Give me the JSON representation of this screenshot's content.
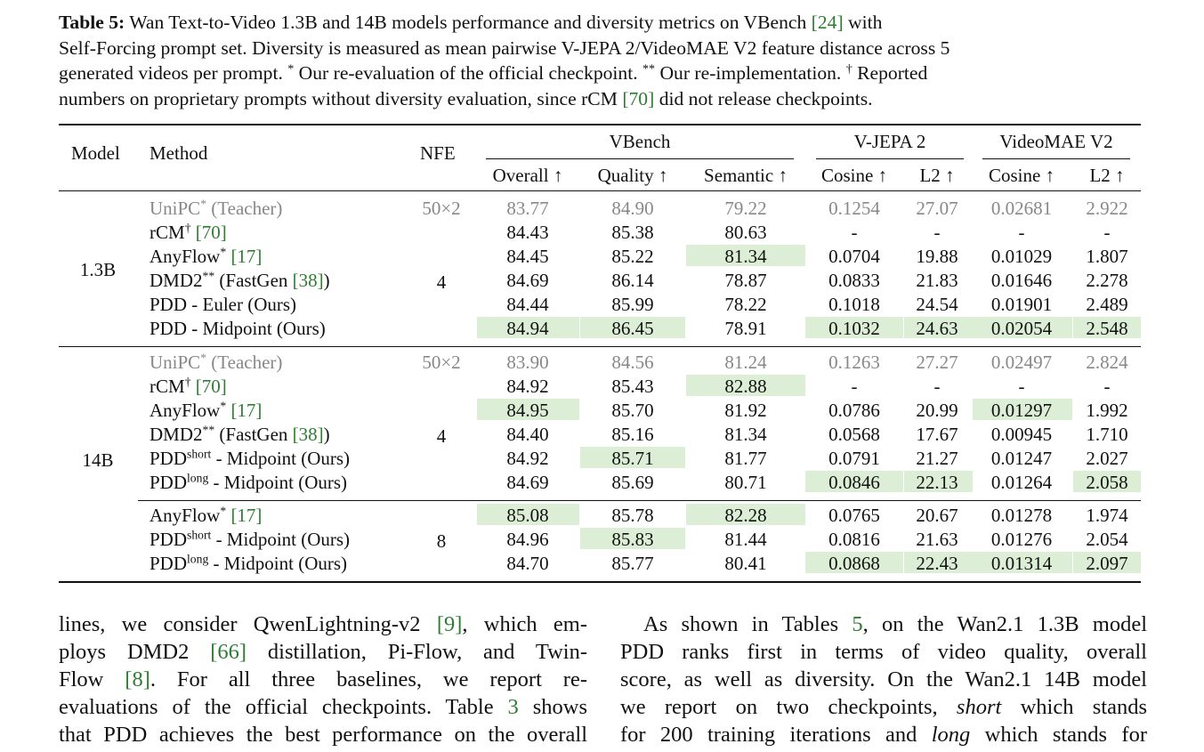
{
  "caption": {
    "label": "Table 5:",
    "line1a": " Wan Text-to-Video 1.3B and 14B models performance and diversity metrics on VBench ",
    "cite1": "[24]",
    "line1b": " with",
    "line2": "Self-Forcing prompt set. Diversity is measured as mean pairwise V-JEPA 2/VideoMAE V2 feature distance across 5",
    "line3a": "generated videos per prompt. ",
    "sup1": "*",
    "line3b": " Our re-evaluation of the official checkpoint. ",
    "sup2": "**",
    "line3c": " Our re-implementation. ",
    "sup3": "†",
    "line3d": " Reported",
    "line4a": "numbers on proprietary prompts without diversity evaluation, since rCM ",
    "cite2": "[70]",
    "line4b": " did not release checkpoints."
  },
  "header": {
    "model": "Model",
    "method": "Method",
    "nfe": "NFE",
    "vbench": "VBench",
    "vjepa": "V-JEPA 2",
    "videomae": "VideoMAE V2",
    "overall": "Overall ↑",
    "quality": "Quality ↑",
    "semantic": "Semantic ↑",
    "cosine1": "Cosine ↑",
    "l2_1": "L2 ↑",
    "cosine2": "Cosine ↑",
    "l2_2": "L2 ↑"
  },
  "groups": {
    "g1_model": "1.3B",
    "g1_nfe": "4",
    "g2_model": "14B",
    "g2_nfe": "4",
    "g3_nfe": "8"
  },
  "rows": [
    {
      "m1": "UniPC",
      "s1": "*",
      "m2": " (Teacher)",
      "nfe": "50×2",
      "v": [
        "83.77",
        "84.90",
        "79.22",
        "0.1254",
        "27.07",
        "0.02681",
        "2.922"
      ]
    },
    {
      "m1": "rCM",
      "s1": "†",
      "m2": " ",
      "cite": "[70]",
      "v": [
        "84.43",
        "85.38",
        "80.63",
        "-",
        "-",
        "-",
        "-"
      ]
    },
    {
      "m1": "AnyFlow",
      "s1": "*",
      "m2": " ",
      "cite": "[17]",
      "v": [
        "84.45",
        "85.22",
        "81.34",
        "0.0704",
        "19.88",
        "0.01029",
        "1.807"
      ]
    },
    {
      "m1": "DMD2",
      "s1": "**",
      "m2": " (FastGen ",
      "cite": "[38]",
      "m3": ")",
      "v": [
        "84.69",
        "86.14",
        "78.87",
        "0.0833",
        "21.83",
        "0.01646",
        "2.278"
      ]
    },
    {
      "m1": "PDD - Euler (Ours)",
      "v": [
        "84.44",
        "85.99",
        "78.22",
        "0.1018",
        "24.54",
        "0.01901",
        "2.489"
      ]
    },
    {
      "m1": "PDD - Midpoint (Ours)",
      "v": [
        "84.94",
        "86.45",
        "78.91",
        "0.1032",
        "24.63",
        "0.02054",
        "2.548"
      ]
    },
    {
      "m1": "UniPC",
      "s1": "*",
      "m2": " (Teacher)",
      "nfe": "50×2",
      "v": [
        "83.90",
        "84.56",
        "81.24",
        "0.1263",
        "27.27",
        "0.02497",
        "2.824"
      ]
    },
    {
      "m1": "rCM",
      "s1": "†",
      "m2": " ",
      "cite": "[70]",
      "v": [
        "84.92",
        "85.43",
        "82.88",
        "-",
        "-",
        "-",
        "-"
      ]
    },
    {
      "m1": "AnyFlow",
      "s1": "*",
      "m2": " ",
      "cite": "[17]",
      "v": [
        "84.95",
        "85.70",
        "81.92",
        "0.0786",
        "20.99",
        "0.01297",
        "1.992"
      ]
    },
    {
      "m1": "DMD2",
      "s1": "**",
      "m2": " (FastGen ",
      "cite": "[38]",
      "m3": ")",
      "v": [
        "84.40",
        "85.16",
        "81.34",
        "0.0568",
        "17.67",
        "0.00945",
        "1.710"
      ]
    },
    {
      "m1": "PDD",
      "s1": "short",
      "m2": " - Midpoint (Ours)",
      "v": [
        "84.92",
        "85.71",
        "81.77",
        "0.0791",
        "21.27",
        "0.01247",
        "2.027"
      ]
    },
    {
      "m1": "PDD",
      "s1": "long",
      "m2": " - Midpoint (Ours)",
      "v": [
        "84.69",
        "85.69",
        "80.71",
        "0.0846",
        "22.13",
        "0.01264",
        "2.058"
      ]
    },
    {
      "m1": "AnyFlow",
      "s1": "*",
      "m2": " ",
      "cite": "[17]",
      "v": [
        "85.08",
        "85.78",
        "82.28",
        "0.0765",
        "20.67",
        "0.01278",
        "1.974"
      ]
    },
    {
      "m1": "PDD",
      "s1": "short",
      "m2": " - Midpoint (Ours)",
      "v": [
        "84.96",
        "85.83",
        "81.44",
        "0.0816",
        "21.63",
        "0.01276",
        "2.054"
      ]
    },
    {
      "m1": "PDD",
      "s1": "long",
      "m2": " - Midpoint (Ours)",
      "v": [
        "84.70",
        "85.77",
        "80.41",
        "0.0868",
        "22.43",
        "0.01314",
        "2.097"
      ]
    }
  ],
  "highlight_color": "#dcefd6",
  "cite_color": "#2e7d32",
  "left_col": {
    "l1a": "lines, we consider QwenLightning-v2 ",
    "l1c": "[9]",
    "l1b": ", which em-",
    "l2a": "ploys DMD2 ",
    "l2c": "[66]",
    "l2b": " distillation, Pi-Flow, and Twin-",
    "l3a": "Flow ",
    "l3c": "[8]",
    "l3b": ".  For all three baselines, we report re-",
    "l4a": "evaluations of the official checkpoints. Table ",
    "l4c": "3",
    "l4b": " shows",
    "l5": "that PDD achieves the best performance on the overall"
  },
  "right_col": {
    "r1a": "As shown in Tables ",
    "r1c": "5",
    "r1b": ", on the Wan2.1 1.3B model",
    "r2": "PDD ranks first in terms of video quality, overall",
    "r3": "score, as well as diversity. On the Wan2.1 14B model",
    "r4a": "we report on two checkpoints, ",
    "r4i": "short",
    "r4b": " which stands",
    "r5a": "for 200 training iterations and ",
    "r5i": "long",
    "r5b": " which stands for"
  }
}
